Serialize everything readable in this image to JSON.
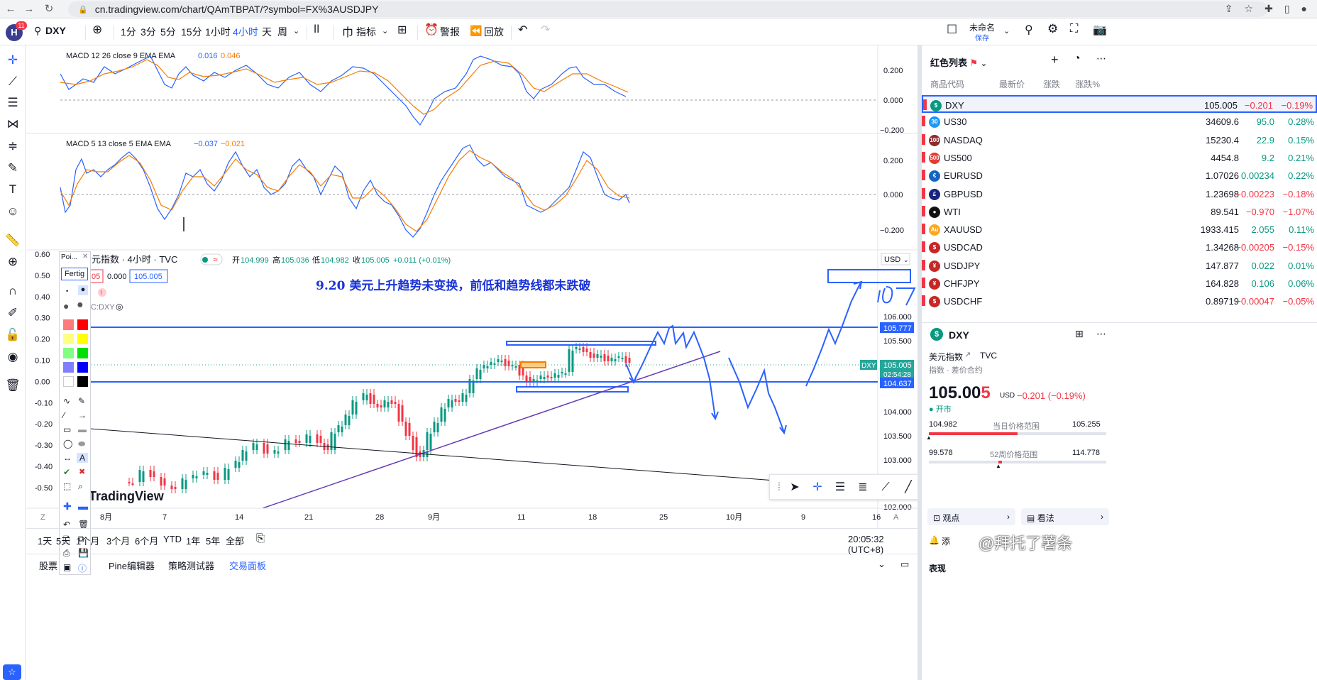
{
  "browser": {
    "url": "cn.tradingview.com/chart/QAmTBPAT/?symbol=FX%3AUSDJPY"
  },
  "topbar": {
    "avatar_letter": "H",
    "avatar_badge": "11",
    "symbol": "DXY",
    "intervals": [
      "1分",
      "3分",
      "5分",
      "15分",
      "1小时",
      "4小时",
      "天",
      "周"
    ],
    "active_interval": "4小时",
    "indicators_label": "指标",
    "alert_label": "警报",
    "replay_label": "回放",
    "layout_name": "未命名",
    "layout_status": "保存"
  },
  "macd1": {
    "label": "MACD 12 26 close 9 EMA EMA",
    "v1": "0.016",
    "v2": "0.046",
    "ticks": [
      "0.200",
      "0.000",
      "−0.200"
    ]
  },
  "macd2": {
    "label": "MACD 5 13 close 5 EMA EMA",
    "v1": "−0.037",
    "v2": "−0.021",
    "ticks": [
      "0.200",
      "0.000",
      "−0.200"
    ]
  },
  "main_chart": {
    "legend_title": "元指数 · 4小时 · TVC",
    "open_label": "开",
    "open": "104.999",
    "high_label": "高",
    "high": "105.036",
    "low_label": "低",
    "low": "104.982",
    "close_label": "收",
    "close": "105.005",
    "change": "+0.011 (+0.01%)",
    "legend_box1": "05",
    "legend_box2": "0.000",
    "legend_box3": "105.005",
    "sub_legend": "C:DXY",
    "currency": "USD",
    "annotation": "9.20 美元上升趋势未变换，前低和趋势线都未跌破",
    "watermark": "TradingView",
    "price_ticks": [
      "106.000",
      "105.500",
      "104.000",
      "103.500",
      "103.000",
      "102.000"
    ],
    "label_105777": "105.777",
    "label_dxy": "DXY",
    "label_price": "105.005",
    "label_timer": "02:54:28",
    "label_104637": "104.637",
    "left_ticks": [
      "0.60",
      "0.50",
      "0.40",
      "0.30",
      "0.20",
      "0.10",
      "0.00",
      "-0.10",
      "-0.20",
      "-0.30",
      "-0.40",
      "-0.50"
    ],
    "time_ticks": [
      "8月",
      "7",
      "14",
      "21",
      "28",
      "9月",
      "11",
      "18",
      "25",
      "10月",
      "9",
      "16"
    ],
    "axis_z": "Z",
    "axis_a": "A"
  },
  "draw_panel": {
    "poi": "Poi...",
    "fertig": "Fertig"
  },
  "bottom_bar": {
    "ranges": [
      "1天",
      "5天",
      "1个月",
      "3个月",
      "6个月",
      "YTD",
      "1年",
      "5年",
      "全部"
    ],
    "time": "20:05:32 (UTC+8)"
  },
  "bottom_tabs": {
    "items": [
      "股票",
      "Pine编辑器",
      "策略测试器",
      "交易面板"
    ],
    "active": "交易面板"
  },
  "watchlist": {
    "title": "红色列表",
    "col_symbol": "商品代码",
    "col_last": "最新价",
    "col_chg": "涨跌",
    "col_chgp": "涨跌%",
    "rows": [
      {
        "sym": "DXY",
        "last": "105.005",
        "chg": "−0.201",
        "chgp": "−0.19%",
        "icon": "$",
        "color": "#089981"
      },
      {
        "sym": "US30",
        "last": "34609.6",
        "chg": "95.0",
        "chgp": "0.28%",
        "icon": "30",
        "color": "#2196f3"
      },
      {
        "sym": "NASDAQ",
        "last": "15230.4",
        "chg": "22.9",
        "chgp": "0.15%",
        "icon": "100",
        "color": "#8e2b2b"
      },
      {
        "sym": "US500",
        "last": "4454.8",
        "chg": "9.2",
        "chgp": "0.21%",
        "icon": "500",
        "color": "#e53935"
      },
      {
        "sym": "EURUSD",
        "last": "1.07026",
        "chg": "0.00234",
        "chgp": "0.22%",
        "icon": "€",
        "color": "#1565c0"
      },
      {
        "sym": "GBPUSD",
        "last": "1.23698",
        "chg": "−0.00223",
        "chgp": "−0.18%",
        "icon": "£",
        "color": "#1a237e"
      },
      {
        "sym": "WTI",
        "last": "89.541",
        "chg": "−0.970",
        "chgp": "−1.07%",
        "icon": "●",
        "color": "#111"
      },
      {
        "sym": "XAUUSD",
        "last": "1933.415",
        "chg": "2.055",
        "chgp": "0.11%",
        "icon": "Au",
        "color": "#f9a825"
      },
      {
        "sym": "USDCAD",
        "last": "1.34268",
        "chg": "−0.00205",
        "chgp": "−0.15%",
        "icon": "$",
        "color": "#c62828"
      },
      {
        "sym": "USDJPY",
        "last": "147.877",
        "chg": "0.022",
        "chgp": "0.01%",
        "icon": "¥",
        "color": "#c62828"
      },
      {
        "sym": "CHFJPY",
        "last": "164.828",
        "chg": "0.106",
        "chgp": "0.06%",
        "icon": "¥",
        "color": "#c62828"
      },
      {
        "sym": "USDCHF",
        "last": "0.89719",
        "chg": "−0.00047",
        "chgp": "−0.05%",
        "icon": "$",
        "color": "#c62828"
      }
    ]
  },
  "detail": {
    "symbol": "DXY",
    "name": "美元指数",
    "exchange": "TVC",
    "sub": "指数 · 差价合约",
    "price_main": "105.00",
    "price_last": "5",
    "currency": "USD",
    "change": "−0.201 (−0.19%)",
    "status": "开市",
    "day_low": "104.982",
    "day_label": "当日价格范围",
    "day_high": "105.255",
    "year_low": "99.578",
    "year_label": "52周价格范围",
    "year_high": "114.778",
    "btn_ideas": "观点",
    "btn_notes": "看法",
    "add_label": "添",
    "footer": "表现",
    "brand": "@拜托了薯条"
  }
}
